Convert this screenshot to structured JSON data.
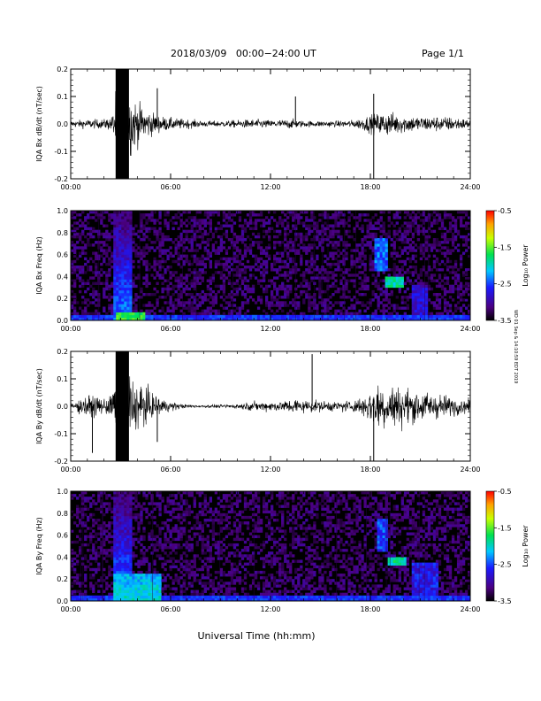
{
  "header": {
    "title": "2018/03/09   00:00−24:00 UT",
    "page": "Page 1/1"
  },
  "stamp": "WD 01 Sep & 14:10:59 EDT 2019",
  "chart_data": [
    {
      "type": "line",
      "title": "",
      "ylabel": "IQA Bx dB/dt (nT/sec)",
      "xlabel": "",
      "xlim": [
        0,
        24
      ],
      "ylim": [
        -0.2,
        0.2
      ],
      "x_ticks": [
        "00:00",
        "06:00",
        "12:00",
        "18:00",
        "24:00"
      ],
      "y_ticks": [
        "-0.2",
        "-0.1",
        "0.0",
        "0.1",
        "0.2"
      ],
      "envelope": {
        "hours": [
          0,
          1,
          2,
          2.5,
          2.7,
          3.0,
          3.5,
          3.8,
          4.0,
          4.5,
          5.0,
          5.5,
          6.0,
          7,
          8,
          9,
          10,
          11,
          12,
          13,
          13.5,
          14,
          15,
          16,
          17,
          17.5,
          18,
          18.5,
          19,
          20,
          21,
          22,
          23,
          24
        ],
        "amplitude": [
          0.02,
          0.03,
          0.03,
          0.05,
          0.22,
          0.22,
          0.22,
          0.17,
          0.14,
          0.1,
          0.07,
          0.05,
          0.04,
          0.03,
          0.02,
          0.02,
          0.025,
          0.03,
          0.025,
          0.03,
          0.03,
          0.02,
          0.02,
          0.02,
          0.025,
          0.04,
          0.06,
          0.07,
          0.08,
          0.06,
          0.05,
          0.05,
          0.045,
          0.03
        ]
      },
      "spikes": [
        {
          "x": 13.5,
          "y": 0.1
        },
        {
          "x": 18.2,
          "y": -0.2
        },
        {
          "x": 18.2,
          "y": 0.11
        },
        {
          "x": 5.2,
          "y": 0.13
        }
      ]
    },
    {
      "type": "heatmap",
      "title": "",
      "ylabel": "IQA Bx Freq (Hz)",
      "xlabel": "",
      "xlim": [
        0,
        24
      ],
      "ylim": [
        0,
        1.0
      ],
      "x_ticks": [
        "00:00",
        "06:00",
        "12:00",
        "18:00",
        "24:00"
      ],
      "y_ticks": [
        "0.0",
        "0.2",
        "0.4",
        "0.6",
        "0.8",
        "1.0"
      ],
      "colorbar": {
        "label": "Log₁₀ Power",
        "range": [
          -3.5,
          -0.5
        ],
        "ticks": [
          "-0.5",
          "-1.5",
          "-2.5",
          "-3.5"
        ]
      },
      "features": [
        {
          "name": "broadband",
          "t0": 2.6,
          "t1": 3.6,
          "f_max": 1.0,
          "level": -2.3
        },
        {
          "name": "base-low",
          "t0": 2.8,
          "t1": 4.5,
          "f_max": 0.08,
          "level": -1.6
        },
        {
          "name": "pc1-upper",
          "t0": 18.3,
          "t1": 19.0,
          "f0": 0.45,
          "f1": 0.75,
          "level": -2.4
        },
        {
          "name": "pc1-lower",
          "t0": 18.9,
          "t1": 20.0,
          "f0": 0.31,
          "f1": 0.39,
          "level": -1.9
        },
        {
          "name": "late-patch",
          "t0": 20.5,
          "t1": 21.5,
          "f0": 0.05,
          "f1": 0.32,
          "level": -2.8
        }
      ]
    },
    {
      "type": "line",
      "title": "",
      "ylabel": "IQA By dB/dt (nT/sec)",
      "xlabel": "",
      "xlim": [
        0,
        24
      ],
      "ylim": [
        -0.2,
        0.2
      ],
      "x_ticks": [
        "00:00",
        "06:00",
        "12:00",
        "18:00",
        "24:00"
      ],
      "y_ticks": [
        "-0.2",
        "-0.1",
        "0.0",
        "0.1",
        "0.2"
      ],
      "envelope": {
        "hours": [
          0,
          1,
          2,
          2.5,
          2.7,
          3.0,
          3.5,
          3.8,
          4.0,
          4.5,
          5.0,
          5.5,
          6.0,
          7,
          8,
          9,
          10,
          11,
          12,
          13,
          13.5,
          14,
          15,
          16,
          17,
          17.5,
          18,
          18.5,
          19,
          20,
          21,
          22,
          23,
          24
        ],
        "amplitude": [
          0.02,
          0.07,
          0.05,
          0.08,
          0.22,
          0.22,
          0.22,
          0.18,
          0.15,
          0.12,
          0.08,
          0.05,
          0.03,
          0.01,
          0.01,
          0.01,
          0.015,
          0.03,
          0.03,
          0.04,
          0.05,
          0.04,
          0.035,
          0.03,
          0.04,
          0.06,
          0.12,
          0.15,
          0.15,
          0.12,
          0.1,
          0.08,
          0.06,
          0.04
        ]
      },
      "spikes": [
        {
          "x": 14.5,
          "y": 0.19
        },
        {
          "x": 18.2,
          "y": -0.2
        },
        {
          "x": 1.3,
          "y": -0.17
        },
        {
          "x": 5.2,
          "y": -0.13
        }
      ]
    },
    {
      "type": "heatmap",
      "title": "",
      "ylabel": "IQA By Freq (Hz)",
      "xlabel": "Universal Time (hh:mm)",
      "xlim": [
        0,
        24
      ],
      "ylim": [
        0,
        1.0
      ],
      "x_ticks": [
        "00:00",
        "06:00",
        "12:00",
        "18:00",
        "24:00"
      ],
      "y_ticks": [
        "0.0",
        "0.2",
        "0.4",
        "0.6",
        "0.8",
        "1.0"
      ],
      "colorbar": {
        "label": "Log₁₀ Power",
        "range": [
          -3.5,
          -0.5
        ],
        "ticks": [
          "-0.5",
          "-1.5",
          "-2.5",
          "-3.5"
        ]
      },
      "features": [
        {
          "name": "broadband",
          "t0": 2.6,
          "t1": 3.6,
          "f_max": 1.0,
          "level": -2.3
        },
        {
          "name": "base-low",
          "t0": 2.5,
          "t1": 5.5,
          "f_max": 0.25,
          "level": -2.0
        },
        {
          "name": "pc1-upper",
          "t0": 18.4,
          "t1": 19.1,
          "f0": 0.45,
          "f1": 0.75,
          "level": -2.5
        },
        {
          "name": "pc1-lower",
          "t0": 19.0,
          "t1": 20.1,
          "f0": 0.33,
          "f1": 0.4,
          "level": -1.9
        },
        {
          "name": "late-patch",
          "t0": 20.5,
          "t1": 22.0,
          "f0": 0.05,
          "f1": 0.35,
          "level": -2.7
        }
      ]
    }
  ]
}
